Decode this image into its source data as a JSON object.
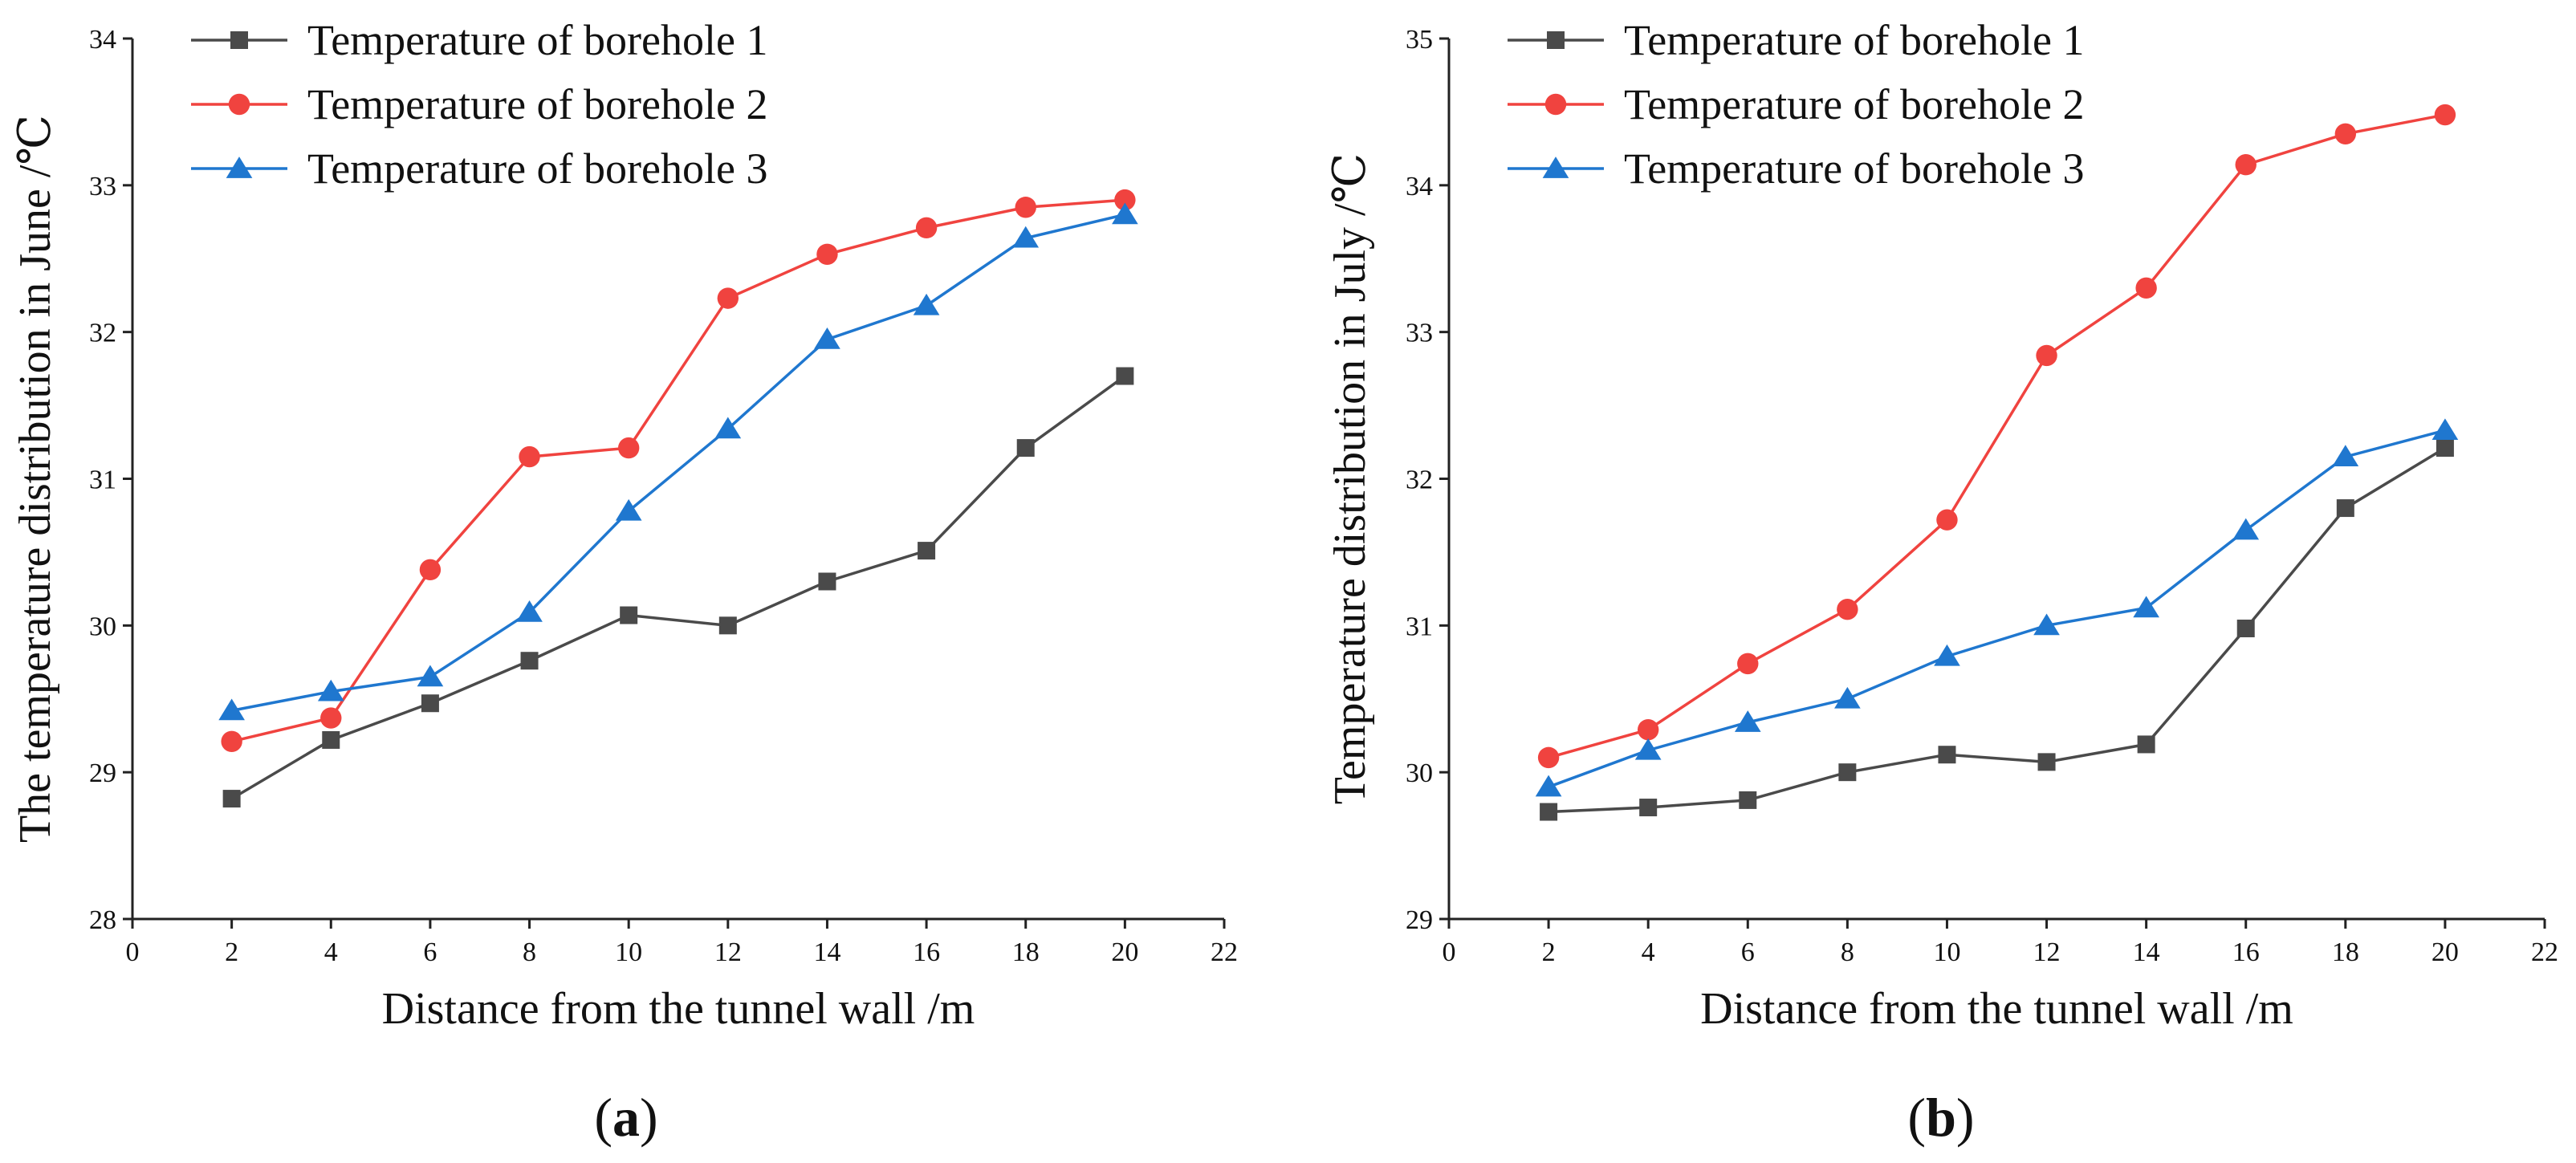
{
  "chart_data": [
    {
      "type": "line",
      "panel_label": "a",
      "x": [
        2,
        4,
        6,
        8,
        10,
        12,
        14,
        16,
        18,
        20
      ],
      "xlim": [
        0,
        22
      ],
      "ylim": [
        28,
        34
      ],
      "xticks": [
        0,
        2,
        4,
        6,
        8,
        10,
        12,
        14,
        16,
        18,
        20,
        22
      ],
      "yticks": [
        28,
        29,
        30,
        31,
        32,
        33,
        34
      ],
      "xlabel": "Distance from the tunnel wall /m",
      "ylabel": "The temperature distribution in June /℃",
      "legend_position": "top-left",
      "series": [
        {
          "name": "Temperature of borehole 1",
          "color": "#4a4a4a",
          "marker": "square",
          "values": [
            28.82,
            29.22,
            29.47,
            29.76,
            30.07,
            30.0,
            30.3,
            30.51,
            31.21,
            31.7
          ]
        },
        {
          "name": "Temperature of borehole 2",
          "color": "#f0433f",
          "marker": "circle",
          "values": [
            29.21,
            29.37,
            30.38,
            31.15,
            31.21,
            32.23,
            32.53,
            32.71,
            32.85,
            32.9
          ]
        },
        {
          "name": "Temperature of borehole 3",
          "color": "#1f77cf",
          "marker": "triangle",
          "values": [
            29.42,
            29.55,
            29.65,
            30.09,
            30.78,
            31.34,
            31.95,
            32.18,
            32.64,
            32.8
          ]
        }
      ]
    },
    {
      "type": "line",
      "panel_label": "b",
      "x": [
        2,
        4,
        6,
        8,
        10,
        12,
        14,
        16,
        18,
        20
      ],
      "xlim": [
        0,
        22
      ],
      "ylim": [
        29,
        35
      ],
      "xticks": [
        0,
        2,
        4,
        6,
        8,
        10,
        12,
        14,
        16,
        18,
        20,
        22
      ],
      "yticks": [
        29,
        30,
        31,
        32,
        33,
        34,
        35
      ],
      "xlabel": "Distance from the tunnel wall /m",
      "ylabel": "Temperature distribution in July /℃",
      "legend_position": "top-left",
      "series": [
        {
          "name": "Temperature of borehole 1",
          "color": "#4a4a4a",
          "marker": "square",
          "values": [
            29.73,
            29.76,
            29.81,
            30.0,
            30.12,
            30.07,
            30.19,
            30.98,
            31.8,
            32.21
          ]
        },
        {
          "name": "Temperature of borehole 2",
          "color": "#f0433f",
          "marker": "circle",
          "values": [
            30.1,
            30.29,
            30.74,
            31.11,
            31.72,
            32.84,
            33.3,
            34.14,
            34.35,
            34.48
          ]
        },
        {
          "name": "Temperature of borehole 3",
          "color": "#1f77cf",
          "marker": "triangle",
          "values": [
            29.9,
            30.15,
            30.34,
            30.5,
            30.79,
            31.0,
            31.12,
            31.65,
            32.15,
            32.33
          ]
        }
      ]
    }
  ]
}
